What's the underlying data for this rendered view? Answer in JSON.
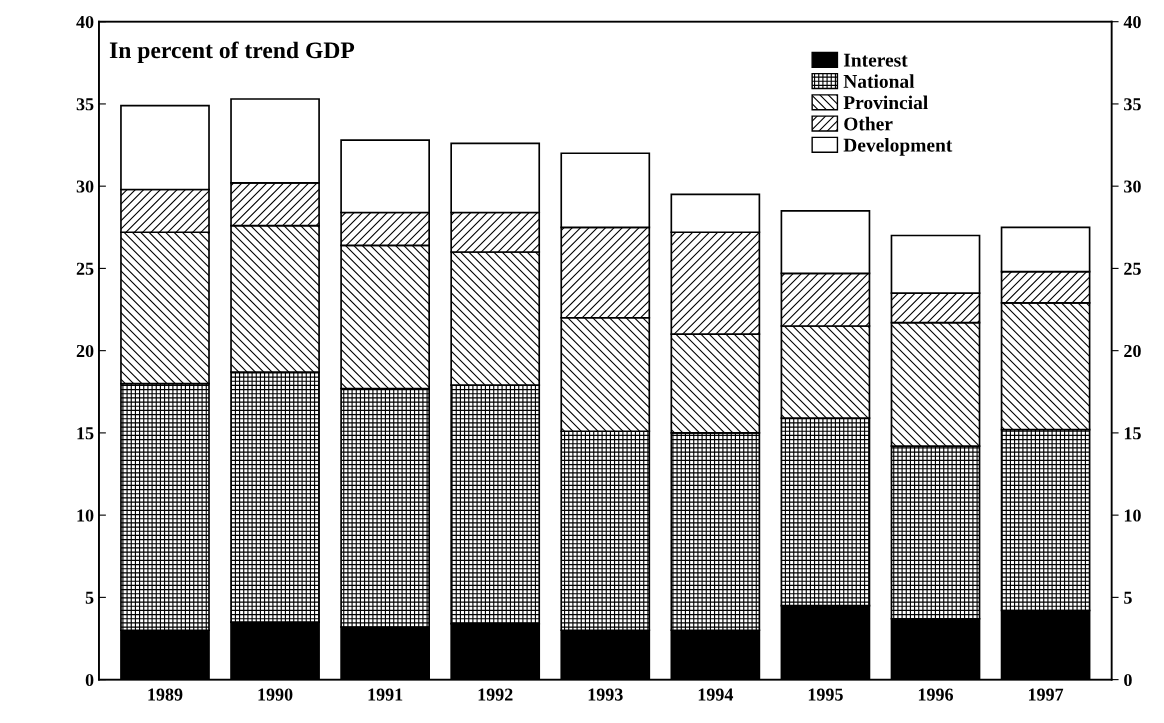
{
  "chart_data": {
    "type": "bar",
    "stacked": true,
    "title": "In percent of trend GDP",
    "categories": [
      "1989",
      "1990",
      "1991",
      "1992",
      "1993",
      "1994",
      "1995",
      "1996",
      "1997"
    ],
    "series": [
      {
        "name": "Interest",
        "color": "#000000",
        "values": [
          3.0,
          3.5,
          3.2,
          3.4,
          3.0,
          3.0,
          4.5,
          3.7,
          4.2
        ]
      },
      {
        "name": "National",
        "color": "#000000",
        "values": [
          15.0,
          15.2,
          14.5,
          14.5,
          12.1,
          12.0,
          11.4,
          10.5,
          11.0
        ]
      },
      {
        "name": "Provincial",
        "color": "#000000",
        "values": [
          9.2,
          8.9,
          8.7,
          8.1,
          6.9,
          6.0,
          5.6,
          7.5,
          7.7
        ]
      },
      {
        "name": "Other",
        "color": "#000000",
        "values": [
          2.6,
          2.6,
          2.0,
          2.4,
          5.5,
          6.2,
          3.2,
          1.8,
          1.9
        ]
      },
      {
        "name": "Development",
        "color": "#ffffff",
        "values": [
          5.1,
          5.1,
          4.4,
          4.2,
          4.5,
          2.3,
          3.8,
          3.5,
          2.7
        ]
      }
    ],
    "ylim": [
      0,
      40
    ],
    "yticks": [
      0,
      5,
      10,
      15,
      20,
      25,
      30,
      35,
      40
    ],
    "y2lim": [
      0,
      40
    ],
    "y2ticks": [
      0,
      5,
      10,
      15,
      20,
      25,
      30,
      35,
      40
    ],
    "grid": false,
    "legend": "top right"
  }
}
